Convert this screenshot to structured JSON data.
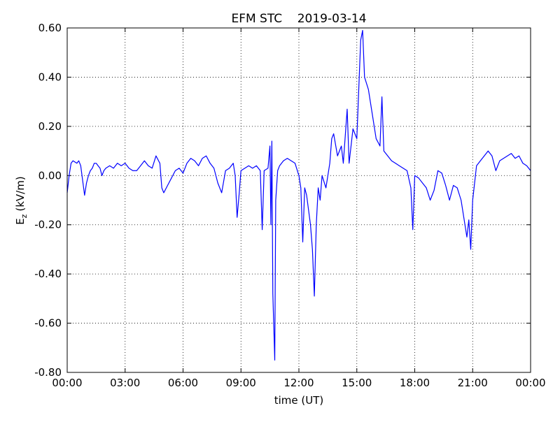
{
  "chart_data": {
    "type": "line",
    "title": "EFM STC    2019-03-14",
    "xlabel": "time (UT)",
    "ylabel": [
      "E",
      "z",
      "(kV/m)"
    ],
    "xlim": [
      0,
      24
    ],
    "ylim": [
      -0.8,
      0.6
    ],
    "xticks": [
      {
        "value": 0,
        "label": "00:00"
      },
      {
        "value": 3,
        "label": "03:00"
      },
      {
        "value": 6,
        "label": "06:00"
      },
      {
        "value": 9,
        "label": "09:00"
      },
      {
        "value": 12,
        "label": "12:00"
      },
      {
        "value": 15,
        "label": "15:00"
      },
      {
        "value": 18,
        "label": "18:00"
      },
      {
        "value": 21,
        "label": "21:00"
      },
      {
        "value": 24,
        "label": "00:00"
      }
    ],
    "yticks": [
      {
        "value": 0.6,
        "label": "0.60"
      },
      {
        "value": 0.4,
        "label": "0.40"
      },
      {
        "value": 0.2,
        "label": "0.20"
      },
      {
        "value": 0,
        "label": "0.00"
      },
      {
        "value": -0.2,
        "label": "-0.20"
      },
      {
        "value": -0.4,
        "label": "-0.40"
      },
      {
        "value": -0.6,
        "label": "-0.60"
      },
      {
        "value": -0.8,
        "label": "-0.80"
      }
    ],
    "grid": true,
    "series": [
      {
        "color": "#0000ff",
        "x": [
          0.0,
          0.1,
          0.2,
          0.3,
          0.5,
          0.6,
          0.7,
          0.8,
          0.9,
          1.0,
          1.1,
          1.2,
          1.3,
          1.4,
          1.5,
          1.6,
          1.7,
          1.8,
          1.9,
          2.0,
          2.2,
          2.4,
          2.6,
          2.8,
          3.0,
          3.2,
          3.4,
          3.6,
          3.8,
          4.0,
          4.2,
          4.4,
          4.6,
          4.8,
          4.9,
          5.0,
          5.2,
          5.4,
          5.6,
          5.8,
          6.0,
          6.2,
          6.4,
          6.6,
          6.8,
          7.0,
          7.2,
          7.4,
          7.6,
          7.8,
          8.0,
          8.2,
          8.4,
          8.6,
          8.7,
          8.8,
          8.9,
          9.0,
          9.2,
          9.4,
          9.6,
          9.8,
          10.0,
          10.1,
          10.2,
          10.4,
          10.5,
          10.55,
          10.6,
          10.65,
          10.75,
          10.8,
          10.9,
          11.0,
          11.2,
          11.4,
          11.6,
          11.8,
          12.0,
          12.1,
          12.2,
          12.3,
          12.4,
          12.6,
          12.7,
          12.8,
          12.9,
          13.0,
          13.1,
          13.2,
          13.4,
          13.6,
          13.7,
          13.8,
          14.0,
          14.2,
          14.3,
          14.5,
          14.6,
          14.8,
          15.0,
          15.1,
          15.2,
          15.3,
          15.4,
          15.6,
          15.8,
          16.0,
          16.2,
          16.3,
          16.4,
          16.6,
          16.8,
          17.0,
          17.2,
          17.4,
          17.6,
          17.8,
          17.9,
          18.0,
          18.2,
          18.4,
          18.6,
          18.8,
          19.0,
          19.2,
          19.4,
          19.6,
          19.8,
          20.0,
          20.2,
          20.4,
          20.6,
          20.7,
          20.8,
          20.9,
          21.0,
          21.2,
          21.4,
          21.6,
          21.8,
          22.0,
          22.2,
          22.4,
          22.6,
          22.8,
          23.0,
          23.2,
          23.4,
          23.6,
          23.8,
          24.0
        ],
        "values": [
          -0.07,
          0.0,
          0.05,
          0.06,
          0.05,
          0.06,
          0.04,
          -0.02,
          -0.08,
          -0.03,
          0.0,
          0.02,
          0.03,
          0.05,
          0.05,
          0.04,
          0.03,
          0.0,
          0.02,
          0.03,
          0.04,
          0.03,
          0.05,
          0.04,
          0.05,
          0.03,
          0.02,
          0.02,
          0.04,
          0.06,
          0.04,
          0.03,
          0.08,
          0.05,
          -0.05,
          -0.07,
          -0.04,
          -0.01,
          0.02,
          0.03,
          0.01,
          0.05,
          0.07,
          0.06,
          0.04,
          0.07,
          0.08,
          0.05,
          0.03,
          -0.03,
          -0.07,
          0.02,
          0.03,
          0.05,
          0.0,
          -0.17,
          -0.08,
          0.02,
          0.03,
          0.04,
          0.03,
          0.04,
          0.02,
          -0.22,
          0.02,
          0.03,
          0.12,
          -0.2,
          0.14,
          -0.48,
          -0.75,
          -0.1,
          0.02,
          0.04,
          0.06,
          0.07,
          0.06,
          0.05,
          0.0,
          -0.05,
          -0.27,
          -0.05,
          -0.08,
          -0.2,
          -0.3,
          -0.49,
          -0.2,
          -0.05,
          -0.1,
          0.0,
          -0.05,
          0.05,
          0.15,
          0.17,
          0.08,
          0.12,
          0.05,
          0.27,
          0.05,
          0.19,
          0.15,
          0.35,
          0.55,
          0.59,
          0.4,
          0.35,
          0.25,
          0.15,
          0.12,
          0.32,
          0.1,
          0.08,
          0.06,
          0.05,
          0.04,
          0.03,
          0.02,
          -0.05,
          -0.22,
          0.0,
          -0.01,
          -0.03,
          -0.05,
          -0.1,
          -0.06,
          0.02,
          0.01,
          -0.04,
          -0.1,
          -0.04,
          -0.05,
          -0.1,
          -0.2,
          -0.25,
          -0.18,
          -0.3,
          -0.1,
          0.04,
          0.06,
          0.08,
          0.1,
          0.08,
          0.02,
          0.06,
          0.07,
          0.08,
          0.09,
          0.07,
          0.08,
          0.05,
          0.04,
          0.02
        ]
      }
    ]
  }
}
